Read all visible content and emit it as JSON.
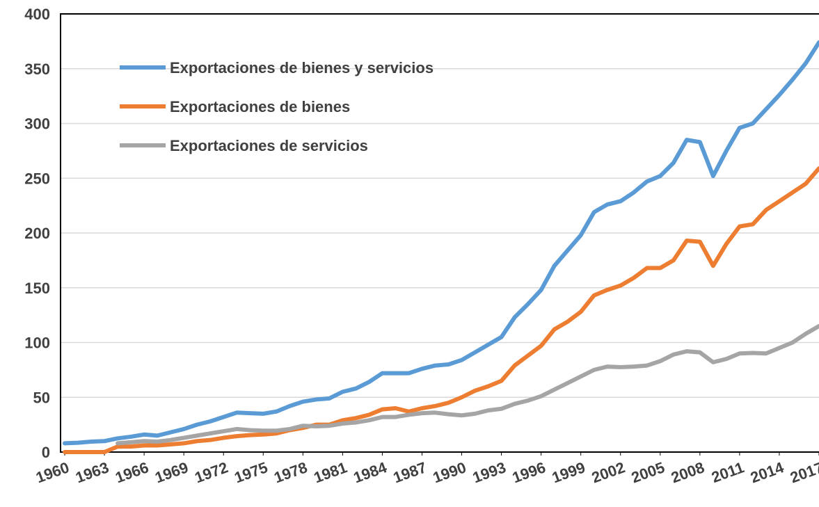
{
  "chart_data": {
    "type": "line",
    "x": [
      1960,
      1961,
      1962,
      1963,
      1964,
      1965,
      1966,
      1967,
      1968,
      1969,
      1970,
      1971,
      1972,
      1973,
      1974,
      1975,
      1976,
      1977,
      1978,
      1979,
      1980,
      1981,
      1982,
      1983,
      1984,
      1985,
      1986,
      1987,
      1988,
      1989,
      1990,
      1991,
      1992,
      1993,
      1994,
      1995,
      1996,
      1997,
      1998,
      1999,
      2000,
      2001,
      2002,
      2003,
      2004,
      2005,
      2006,
      2007,
      2008,
      2009,
      2010,
      2011,
      2012,
      2013,
      2014,
      2015,
      2016,
      2017
    ],
    "xlim": [
      1960,
      2017
    ],
    "xticks": [
      1960,
      1963,
      1966,
      1969,
      1972,
      1975,
      1978,
      1981,
      1984,
      1987,
      1990,
      1993,
      1996,
      1999,
      2002,
      2005,
      2008,
      2011,
      2014,
      2017
    ],
    "ylim": [
      0,
      400
    ],
    "yticks": [
      0,
      50,
      100,
      150,
      200,
      250,
      300,
      350,
      400
    ],
    "grid": true,
    "legend": "upper left",
    "series": [
      {
        "name": "Exportaciones de bienes y servicios",
        "color": "#5b9bd5",
        "values": [
          8,
          8.5,
          9.5,
          10,
          12.5,
          14,
          16,
          15,
          18,
          21,
          25,
          28,
          32,
          36,
          35.5,
          35,
          37,
          42,
          46,
          48,
          49,
          55,
          58,
          64,
          72,
          72,
          72,
          76,
          79,
          80,
          84,
          91,
          98,
          105,
          123,
          135,
          148,
          170,
          184,
          198,
          219,
          226,
          229,
          237,
          247,
          252,
          264,
          285,
          283,
          252,
          275,
          296,
          300,
          313,
          326,
          340,
          355,
          374
        ]
      },
      {
        "name": "Exportaciones de bienes",
        "color": "#ed7d31",
        "values": [
          0,
          0,
          0,
          0,
          5,
          5,
          6,
          6,
          7,
          8,
          10,
          11,
          13,
          14.5,
          15.5,
          16,
          17,
          20,
          22,
          25,
          25,
          29,
          31,
          34,
          39,
          40,
          37,
          40,
          42,
          45,
          50,
          56,
          60,
          65,
          79,
          88,
          97,
          112,
          119,
          128,
          143,
          148,
          152,
          159,
          168,
          168,
          175,
          193,
          192,
          170,
          190,
          206,
          208,
          221,
          229,
          237,
          245,
          259
        ]
      },
      {
        "name": "Exportaciones de servicios",
        "color": "#a5a5a5",
        "values": [
          null,
          null,
          null,
          null,
          8,
          9,
          10,
          9.5,
          11,
          13,
          15,
          17,
          19,
          21,
          20,
          19.5,
          19.5,
          21,
          24,
          23.5,
          24,
          26,
          27,
          29,
          32,
          32,
          34,
          35.5,
          36,
          34.5,
          33.5,
          35,
          38,
          39.5,
          44,
          47,
          51,
          57,
          63,
          69,
          75,
          78,
          77.5,
          78,
          79,
          83,
          89,
          92,
          91,
          82,
          85,
          90,
          90.5,
          90,
          95,
          100,
          108,
          115
        ]
      }
    ]
  }
}
